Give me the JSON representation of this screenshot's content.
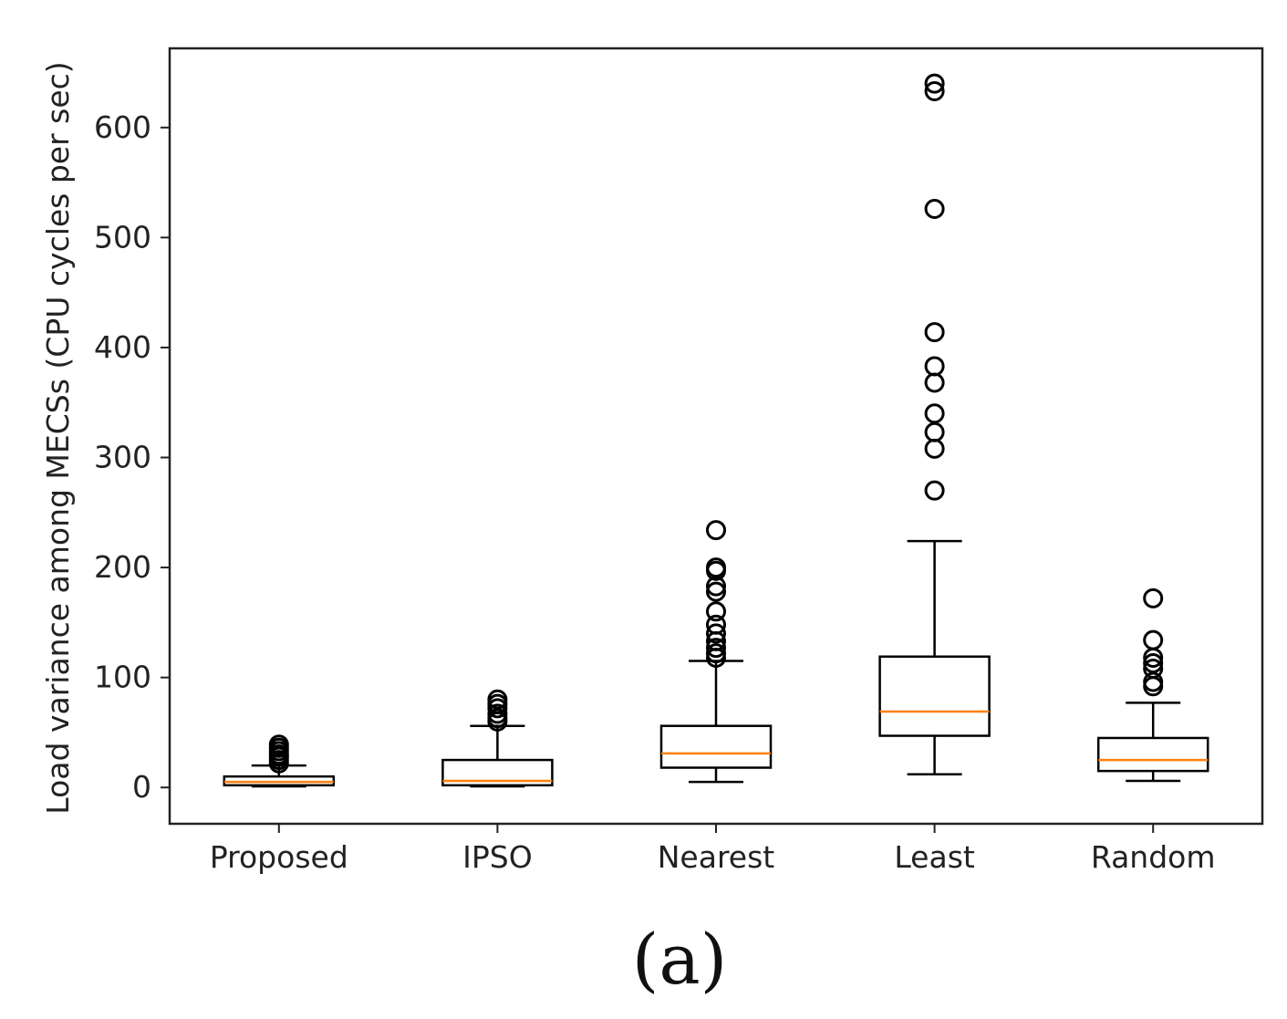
{
  "chart_data": {
    "type": "box",
    "title": "",
    "xlabel": "",
    "ylabel": "Load variance among MECSs (CPU cycles per sec)",
    "ylim": [
      -33,
      672
    ],
    "yticks": [
      0,
      100,
      200,
      300,
      400,
      500,
      600
    ],
    "grid": false,
    "categories": [
      "Proposed",
      "IPSO",
      "Nearest",
      "Least",
      "Random"
    ],
    "boxes": [
      {
        "name": "Proposed",
        "whisker_low": 1,
        "q1": 2,
        "median": 5,
        "q3": 10,
        "whisker_high": 20,
        "outliers": [
          22,
          25,
          28,
          30,
          33,
          36,
          39
        ]
      },
      {
        "name": "IPSO",
        "whisker_low": 1,
        "q1": 2,
        "median": 6,
        "q3": 25,
        "whisker_high": 56,
        "outliers": [
          60,
          63,
          67,
          72,
          76,
          80
        ]
      },
      {
        "name": "Nearest",
        "whisker_low": 5,
        "q1": 18,
        "median": 31,
        "q3": 56,
        "whisker_high": 115,
        "outliers": [
          118,
          122,
          127,
          133,
          140,
          148,
          160,
          178,
          183,
          197,
          200,
          234
        ]
      },
      {
        "name": "Least",
        "whisker_low": 12,
        "q1": 47,
        "median": 69,
        "q3": 119,
        "whisker_high": 224,
        "outliers": [
          270,
          308,
          323,
          340,
          368,
          383,
          414,
          526,
          633,
          640
        ]
      },
      {
        "name": "Random",
        "whisker_low": 6,
        "q1": 15,
        "median": 25,
        "q3": 45,
        "whisker_high": 77,
        "outliers": [
          92,
          96,
          108,
          113,
          118,
          134,
          172
        ]
      }
    ],
    "colors": {
      "box": "#000000",
      "median": "#ff7f0e",
      "outlier": "#000000"
    }
  },
  "caption": "(a)"
}
